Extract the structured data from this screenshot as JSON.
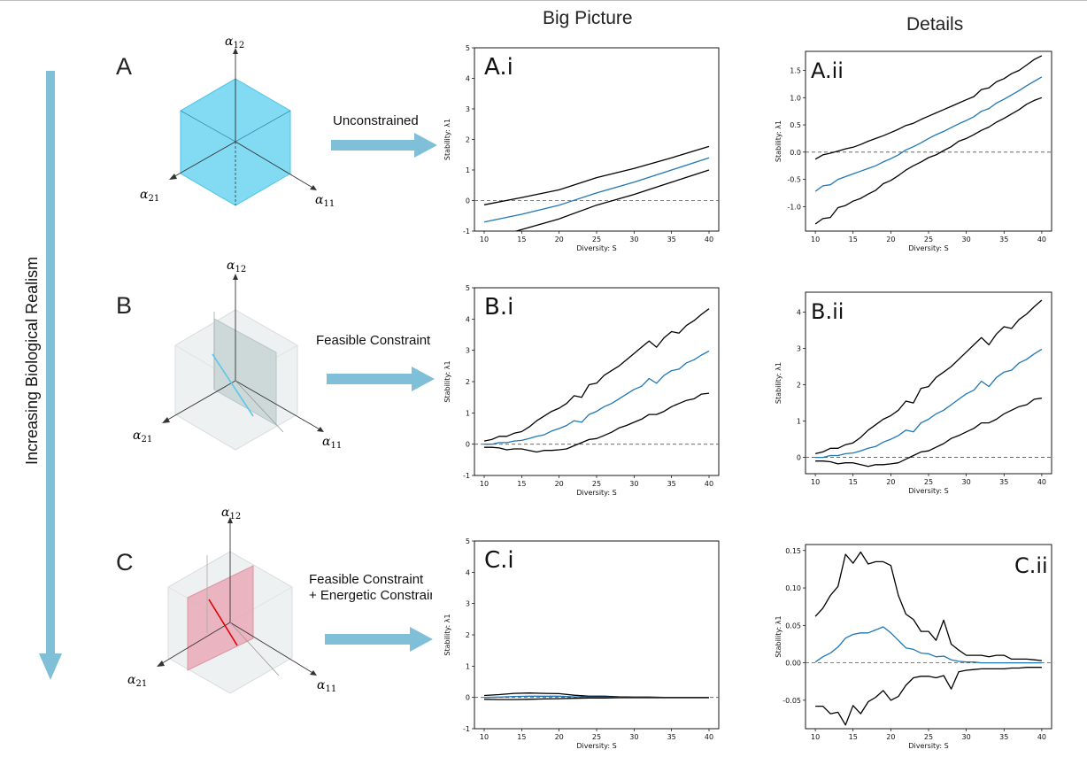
{
  "page": {
    "column_titles": [
      "Big Picture",
      "Details"
    ],
    "side_label": "Increasing Biological Realism",
    "row_letters": [
      "A",
      "B",
      "C"
    ],
    "arrow_labels": {
      "A": [
        "Unconstrained"
      ],
      "B": [
        "Feasible Constraint"
      ],
      "C": [
        "Feasible Constraint",
        "+ Energetic Constraint"
      ]
    },
    "axis_labels": {
      "a12": "α12",
      "a21": "α21",
      "a11": "α11"
    },
    "colors": {
      "arrow": "#7fc0d8",
      "cube_blue": "#63d2ef",
      "plane_gray": "#c7d3d5",
      "plane_pink": "#e8a5b4",
      "line_red": "#e00000",
      "line_cyan": "#5ac8e6",
      "series_mean": "#1f77b4",
      "series_bound": "#000000"
    }
  },
  "chart_data": [
    {
      "panel": "A.i",
      "type": "line",
      "xlabel": "Diversity: S",
      "ylabel": "Stability: λ1",
      "xlim": [
        8.7,
        41.3
      ],
      "ylim": [
        -1,
        5
      ],
      "xticks": [
        10,
        15,
        20,
        25,
        30,
        35,
        40
      ],
      "yticks": [
        -1,
        0,
        1,
        2,
        3,
        4,
        5
      ],
      "baseline": 0,
      "x": [
        10,
        15,
        20,
        25,
        30,
        35,
        40
      ],
      "series": [
        {
          "role": "upper",
          "values": [
            -0.14,
            0.1,
            0.35,
            0.75,
            1.05,
            1.4,
            1.77
          ]
        },
        {
          "role": "mean",
          "values": [
            -0.7,
            -0.45,
            -0.15,
            0.25,
            0.6,
            1.0,
            1.4
          ]
        },
        {
          "role": "lower",
          "values": [
            -1.3,
            -0.95,
            -0.6,
            -0.15,
            0.2,
            0.6,
            1.0
          ]
        }
      ]
    },
    {
      "panel": "A.ii",
      "type": "line",
      "xlabel": "Diversity: S",
      "ylabel": "Stability: λ1",
      "xlim": [
        8.7,
        41.3
      ],
      "ylim": [
        -1.45,
        1.85
      ],
      "xticks": [
        10,
        15,
        20,
        25,
        30,
        35,
        40
      ],
      "yticks": [
        -1.0,
        -0.5,
        0.0,
        0.5,
        1.0,
        1.5
      ],
      "baseline": 0,
      "x": [
        10,
        11,
        12,
        13,
        14,
        15,
        16,
        17,
        18,
        19,
        20,
        21,
        22,
        23,
        24,
        25,
        26,
        27,
        28,
        29,
        30,
        31,
        32,
        33,
        34,
        35,
        36,
        37,
        38,
        39,
        40
      ],
      "series": [
        {
          "role": "upper",
          "values": [
            -0.13,
            -0.05,
            -0.02,
            0.02,
            0.06,
            0.09,
            0.14,
            0.2,
            0.25,
            0.3,
            0.36,
            0.42,
            0.49,
            0.53,
            0.6,
            0.66,
            0.72,
            0.78,
            0.84,
            0.9,
            0.96,
            1.02,
            1.15,
            1.18,
            1.29,
            1.35,
            1.44,
            1.5,
            1.6,
            1.7,
            1.77
          ]
        },
        {
          "role": "mean",
          "values": [
            -0.72,
            -0.62,
            -0.6,
            -0.5,
            -0.45,
            -0.4,
            -0.35,
            -0.3,
            -0.25,
            -0.18,
            -0.12,
            -0.05,
            0.04,
            0.1,
            0.17,
            0.25,
            0.32,
            0.38,
            0.45,
            0.52,
            0.58,
            0.65,
            0.75,
            0.8,
            0.9,
            0.97,
            1.05,
            1.13,
            1.22,
            1.3,
            1.38
          ]
        },
        {
          "role": "lower",
          "values": [
            -1.32,
            -1.22,
            -1.2,
            -1.02,
            -0.98,
            -0.9,
            -0.85,
            -0.77,
            -0.7,
            -0.58,
            -0.52,
            -0.43,
            -0.33,
            -0.25,
            -0.18,
            -0.1,
            -0.05,
            0.03,
            0.1,
            0.2,
            0.25,
            0.32,
            0.4,
            0.46,
            0.55,
            0.62,
            0.7,
            0.78,
            0.88,
            0.95,
            1.0
          ]
        }
      ]
    },
    {
      "panel": "B.i",
      "type": "line",
      "xlabel": "Diversity: S",
      "ylabel": "Stability: λ1",
      "xlim": [
        8.7,
        41.3
      ],
      "ylim": [
        -1,
        5
      ],
      "xticks": [
        10,
        15,
        20,
        25,
        30,
        35,
        40
      ],
      "yticks": [
        -1,
        0,
        1,
        2,
        3,
        4,
        5
      ],
      "baseline": 0,
      "x": [
        10,
        11,
        12,
        13,
        14,
        15,
        16,
        17,
        18,
        19,
        20,
        21,
        22,
        23,
        24,
        25,
        26,
        27,
        28,
        29,
        30,
        31,
        32,
        33,
        34,
        35,
        36,
        37,
        38,
        39,
        40
      ],
      "series": [
        {
          "role": "upper",
          "values": [
            0.1,
            0.15,
            0.25,
            0.25,
            0.35,
            0.4,
            0.55,
            0.75,
            0.9,
            1.05,
            1.15,
            1.3,
            1.55,
            1.5,
            1.9,
            1.95,
            2.2,
            2.35,
            2.5,
            2.7,
            2.9,
            3.1,
            3.3,
            3.1,
            3.4,
            3.6,
            3.55,
            3.8,
            3.95,
            4.15,
            4.33
          ]
        },
        {
          "role": "mean",
          "values": [
            0.0,
            0.0,
            0.05,
            0.05,
            0.1,
            0.12,
            0.18,
            0.25,
            0.3,
            0.42,
            0.5,
            0.6,
            0.75,
            0.7,
            0.95,
            1.05,
            1.2,
            1.3,
            1.45,
            1.6,
            1.75,
            1.85,
            2.1,
            1.95,
            2.2,
            2.35,
            2.4,
            2.6,
            2.7,
            2.85,
            2.98
          ]
        },
        {
          "role": "lower",
          "values": [
            -0.1,
            -0.1,
            -0.12,
            -0.18,
            -0.15,
            -0.15,
            -0.2,
            -0.25,
            -0.2,
            -0.2,
            -0.18,
            -0.15,
            -0.05,
            0.05,
            0.15,
            0.18,
            0.28,
            0.38,
            0.52,
            0.6,
            0.7,
            0.8,
            0.95,
            0.95,
            1.05,
            1.2,
            1.3,
            1.4,
            1.45,
            1.6,
            1.63
          ]
        }
      ]
    },
    {
      "panel": "B.ii",
      "type": "line",
      "xlabel": "Diversity: S",
      "ylabel": "Stability: λ1",
      "xlim": [
        8.7,
        41.3
      ],
      "ylim": [
        -0.45,
        4.55
      ],
      "xticks": [
        10,
        15,
        20,
        25,
        30,
        35,
        40
      ],
      "yticks": [
        0,
        1,
        2,
        3,
        4
      ],
      "baseline": 0,
      "x": [
        10,
        11,
        12,
        13,
        14,
        15,
        16,
        17,
        18,
        19,
        20,
        21,
        22,
        23,
        24,
        25,
        26,
        27,
        28,
        29,
        30,
        31,
        32,
        33,
        34,
        35,
        36,
        37,
        38,
        39,
        40
      ],
      "series": [
        {
          "role": "upper",
          "values": [
            0.1,
            0.15,
            0.25,
            0.25,
            0.35,
            0.4,
            0.55,
            0.75,
            0.9,
            1.05,
            1.15,
            1.3,
            1.55,
            1.5,
            1.9,
            1.95,
            2.2,
            2.35,
            2.5,
            2.7,
            2.9,
            3.1,
            3.3,
            3.1,
            3.4,
            3.6,
            3.55,
            3.8,
            3.95,
            4.15,
            4.33
          ]
        },
        {
          "role": "mean",
          "values": [
            0.0,
            0.0,
            0.05,
            0.05,
            0.1,
            0.12,
            0.18,
            0.25,
            0.3,
            0.42,
            0.5,
            0.6,
            0.75,
            0.7,
            0.95,
            1.05,
            1.2,
            1.3,
            1.45,
            1.6,
            1.75,
            1.85,
            2.1,
            1.95,
            2.2,
            2.35,
            2.4,
            2.6,
            2.7,
            2.85,
            2.98
          ]
        },
        {
          "role": "lower",
          "values": [
            -0.1,
            -0.1,
            -0.12,
            -0.18,
            -0.15,
            -0.15,
            -0.2,
            -0.25,
            -0.2,
            -0.2,
            -0.18,
            -0.15,
            -0.05,
            0.05,
            0.15,
            0.18,
            0.28,
            0.38,
            0.52,
            0.6,
            0.7,
            0.8,
            0.95,
            0.95,
            1.05,
            1.2,
            1.3,
            1.4,
            1.45,
            1.6,
            1.63
          ]
        }
      ]
    },
    {
      "panel": "C.i",
      "type": "line",
      "xlabel": "Diversity: S",
      "ylabel": "Stability: λ1",
      "xlim": [
        8.7,
        41.3
      ],
      "ylim": [
        -1,
        5
      ],
      "xticks": [
        10,
        15,
        20,
        25,
        30,
        35,
        40
      ],
      "yticks": [
        -1,
        0,
        1,
        2,
        3,
        4,
        5
      ],
      "baseline": 0,
      "x": [
        10,
        12,
        14,
        16,
        18,
        20,
        22,
        24,
        26,
        28,
        30,
        32,
        34,
        36,
        38,
        40
      ],
      "series": [
        {
          "role": "upper",
          "values": [
            0.06,
            0.09,
            0.13,
            0.14,
            0.13,
            0.12,
            0.07,
            0.04,
            0.04,
            0.02,
            0.01,
            0.01,
            0.0,
            0.0,
            0.0,
            0.0
          ]
        },
        {
          "role": "mean",
          "values": [
            0.0,
            0.01,
            0.03,
            0.04,
            0.04,
            0.04,
            0.02,
            0.01,
            0.01,
            0.0,
            0.0,
            0.0,
            0.0,
            0.0,
            0.0,
            0.0
          ]
        },
        {
          "role": "lower",
          "values": [
            -0.06,
            -0.07,
            -0.07,
            -0.06,
            -0.05,
            -0.04,
            -0.03,
            -0.02,
            -0.02,
            -0.01,
            -0.01,
            -0.01,
            -0.01,
            -0.01,
            -0.01,
            -0.01
          ]
        }
      ]
    },
    {
      "panel": "C.ii",
      "type": "line",
      "xlabel": "Diversity: S",
      "ylabel": "Stability: λ1",
      "xlim": [
        8.7,
        41.3
      ],
      "ylim": [
        -0.088,
        0.158
      ],
      "xticks": [
        10,
        15,
        20,
        25,
        30,
        35,
        40
      ],
      "yticks": [
        -0.05,
        0.0,
        0.05,
        0.1,
        0.15
      ],
      "baseline": 0,
      "x": [
        10,
        11,
        12,
        13,
        14,
        15,
        16,
        17,
        18,
        19,
        20,
        21,
        22,
        23,
        24,
        25,
        26,
        27,
        28,
        29,
        30,
        31,
        32,
        33,
        34,
        35,
        36,
        37,
        38,
        39,
        40
      ],
      "series": [
        {
          "role": "upper",
          "values": [
            0.062,
            0.073,
            0.09,
            0.102,
            0.145,
            0.133,
            0.148,
            0.132,
            0.135,
            0.135,
            0.13,
            0.09,
            0.065,
            0.058,
            0.042,
            0.042,
            0.03,
            0.057,
            0.025,
            0.017,
            0.01,
            0.01,
            0.01,
            0.008,
            0.01,
            0.01,
            0.005,
            0.005,
            0.005,
            0.004,
            0.003
          ]
        },
        {
          "role": "mean",
          "values": [
            0.001,
            0.008,
            0.013,
            0.021,
            0.033,
            0.038,
            0.04,
            0.04,
            0.044,
            0.048,
            0.04,
            0.03,
            0.02,
            0.018,
            0.013,
            0.012,
            0.008,
            0.009,
            0.004,
            0.002,
            0.001,
            0.001,
            0.0,
            0.0,
            0.0,
            0.0,
            0.0,
            0.0,
            0.0,
            0.0,
            0.0
          ]
        },
        {
          "role": "lower",
          "values": [
            -0.058,
            -0.058,
            -0.068,
            -0.066,
            -0.083,
            -0.057,
            -0.068,
            -0.052,
            -0.046,
            -0.037,
            -0.05,
            -0.045,
            -0.03,
            -0.02,
            -0.018,
            -0.018,
            -0.02,
            -0.017,
            -0.035,
            -0.012,
            -0.01,
            -0.009,
            -0.008,
            -0.008,
            -0.008,
            -0.008,
            -0.007,
            -0.007,
            -0.006,
            -0.006,
            -0.006
          ]
        }
      ]
    }
  ]
}
